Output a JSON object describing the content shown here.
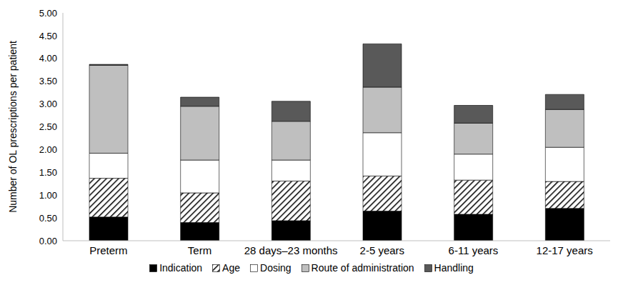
{
  "chart_data": {
    "type": "bar",
    "stacked": true,
    "y_label": "Number of OL prescriptions per patient",
    "categories": [
      "Preterm",
      "Term",
      "28 days–23 months",
      "2-5 years",
      "6-11 years",
      "12-17 years"
    ],
    "series": [
      {
        "name": "Indication",
        "color": "#000000",
        "values": [
          0.52,
          0.4,
          0.44,
          0.65,
          0.58,
          0.71
        ]
      },
      {
        "name": "Age",
        "color": "#000000",
        "marker": "hatch",
        "values": [
          0.85,
          0.65,
          0.87,
          0.77,
          0.75,
          0.59
        ]
      },
      {
        "name": "Dosing",
        "color": "#ffffff",
        "values": [
          0.55,
          0.72,
          0.46,
          0.95,
          0.57,
          0.75
        ]
      },
      {
        "name": "Route of administration",
        "color": "#bfbfbf",
        "values": [
          1.93,
          1.18,
          0.85,
          1.0,
          0.68,
          0.83
        ]
      },
      {
        "name": "Handling",
        "color": "#595959",
        "values": [
          0.02,
          0.2,
          0.44,
          0.95,
          0.39,
          0.33
        ]
      }
    ],
    "ylim": [
      0,
      5
    ],
    "yticks": [
      {
        "value": 0,
        "label": "0.00"
      },
      {
        "value": 0.5,
        "label": "0.50"
      },
      {
        "value": 1,
        "label": "1.00"
      },
      {
        "value": 1.5,
        "label": "1.50"
      },
      {
        "value": 2,
        "label": "2.00"
      },
      {
        "value": 2.5,
        "label": "2.50"
      },
      {
        "value": 3,
        "label": "3.00"
      },
      {
        "value": 3.5,
        "label": "3.50"
      },
      {
        "value": 4,
        "label": "4.00"
      },
      {
        "value": 4.5,
        "label": "4.50"
      },
      {
        "value": 5,
        "label": "5.00"
      }
    ],
    "grid": false,
    "legend": "bottom"
  }
}
